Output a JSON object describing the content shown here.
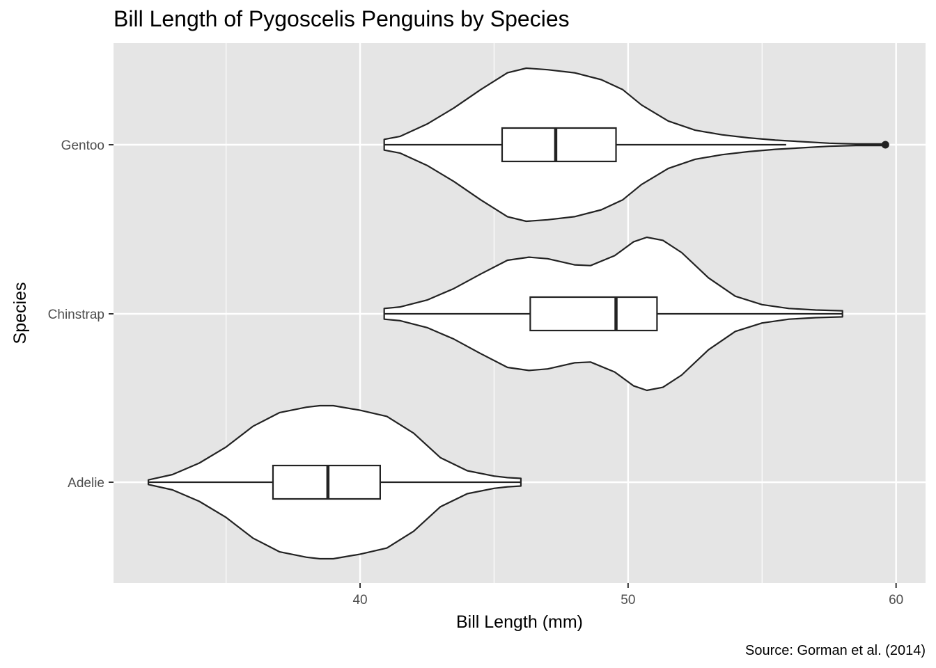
{
  "chart_data": {
    "type": "violin",
    "title": "Bill Length of Pygoscelis Penguins by Species",
    "xlabel": "Bill Length (mm)",
    "ylabel": "Species",
    "caption": "Source: Gorman et al. (2014)",
    "xlim": [
      30.8,
      61.1
    ],
    "x_ticks": [
      40,
      50,
      60
    ],
    "x_minor": [
      35,
      45,
      55
    ],
    "grid": true,
    "orientation": "horizontal",
    "categories": [
      "Adelie",
      "Chinstrap",
      "Gentoo"
    ],
    "series": [
      {
        "name": "Adelie",
        "min": 32.1,
        "max": 46.0,
        "box": {
          "q1": 36.75,
          "median": 38.8,
          "q3": 40.75,
          "whisker_low": 32.1,
          "whisker_high": 46.0
        },
        "outliers": [],
        "density": [
          [
            32.1,
            0.03
          ],
          [
            33.0,
            0.1
          ],
          [
            34.0,
            0.25
          ],
          [
            35.0,
            0.46
          ],
          [
            36.0,
            0.73
          ],
          [
            37.0,
            0.91
          ],
          [
            38.0,
            0.98
          ],
          [
            38.5,
            1.0
          ],
          [
            39.0,
            1.0
          ],
          [
            40.0,
            0.94
          ],
          [
            41.0,
            0.86
          ],
          [
            42.0,
            0.64
          ],
          [
            43.0,
            0.32
          ],
          [
            44.0,
            0.15
          ],
          [
            45.0,
            0.08
          ],
          [
            45.5,
            0.06
          ],
          [
            46.0,
            0.05
          ]
        ]
      },
      {
        "name": "Chinstrap",
        "min": 40.9,
        "max": 58.0,
        "box": {
          "q1": 46.35,
          "median": 49.55,
          "q3": 51.08,
          "whisker_low": 40.9,
          "whisker_high": 58.0
        },
        "outliers": [],
        "density": [
          [
            40.9,
            0.07
          ],
          [
            41.5,
            0.09
          ],
          [
            42.5,
            0.18
          ],
          [
            43.5,
            0.33
          ],
          [
            44.5,
            0.52
          ],
          [
            45.5,
            0.7
          ],
          [
            46.3,
            0.74
          ],
          [
            47.0,
            0.72
          ],
          [
            48.0,
            0.64
          ],
          [
            48.6,
            0.63
          ],
          [
            49.5,
            0.76
          ],
          [
            50.2,
            0.94
          ],
          [
            50.7,
            1.0
          ],
          [
            51.3,
            0.96
          ],
          [
            52.0,
            0.8
          ],
          [
            53.0,
            0.47
          ],
          [
            54.0,
            0.23
          ],
          [
            55.0,
            0.12
          ],
          [
            56.0,
            0.07
          ],
          [
            57.0,
            0.05
          ],
          [
            58.0,
            0.04
          ]
        ]
      },
      {
        "name": "Gentoo",
        "min": 40.9,
        "max": 59.6,
        "box": {
          "q1": 45.3,
          "median": 47.3,
          "q3": 49.55,
          "whisker_low": 40.9,
          "whisker_high": 55.9
        },
        "outliers": [
          59.6
        ],
        "density": [
          [
            40.9,
            0.07
          ],
          [
            41.5,
            0.11
          ],
          [
            42.5,
            0.27
          ],
          [
            43.5,
            0.48
          ],
          [
            44.5,
            0.72
          ],
          [
            45.5,
            0.94
          ],
          [
            46.2,
            1.0
          ],
          [
            47.0,
            0.98
          ],
          [
            48.0,
            0.94
          ],
          [
            49.0,
            0.85
          ],
          [
            49.8,
            0.72
          ],
          [
            50.5,
            0.52
          ],
          [
            51.5,
            0.31
          ],
          [
            52.5,
            0.19
          ],
          [
            53.5,
            0.13
          ],
          [
            54.5,
            0.09
          ],
          [
            55.5,
            0.06
          ],
          [
            56.5,
            0.04
          ],
          [
            57.5,
            0.02
          ],
          [
            58.5,
            0.01
          ],
          [
            59.6,
            0.01
          ]
        ]
      }
    ]
  }
}
